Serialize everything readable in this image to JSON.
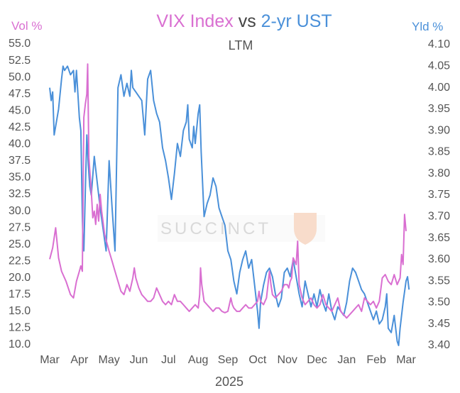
{
  "chart_data": {
    "type": "line",
    "title_parts": [
      "VIX Index",
      " vs ",
      "2-yr UST"
    ],
    "subtitle": "LTM",
    "left_axis_label": "Vol %",
    "right_axis_label": "Yld %",
    "year_label": "2025",
    "watermark": "SUCCINCT",
    "colors": {
      "vix": "#d96fd1",
      "ust": "#4a90d9",
      "vs": "#444444"
    },
    "x_labels": [
      "Mar",
      "Apr",
      "May",
      "Jun",
      "Jul",
      "Aug",
      "Sep",
      "Oct",
      "Nov",
      "Dec",
      "Jan",
      "Feb",
      "Mar"
    ],
    "left_ticks": [
      "55.0",
      "52.5",
      "50.0",
      "47.5",
      "45.0",
      "42.5",
      "40.0",
      "37.5",
      "35.0",
      "32.5",
      "30.0",
      "27.5",
      "25.0",
      "22.5",
      "20.0",
      "17.5",
      "15.0",
      "12.5",
      "10.0"
    ],
    "right_ticks": [
      "4.10",
      "4.05",
      "4.00",
      "3.95",
      "3.90",
      "3.85",
      "3.80",
      "3.75",
      "3.70",
      "3.65",
      "3.60",
      "3.55",
      "3.50",
      "3.45",
      "3.40"
    ],
    "y_left_range": [
      10,
      55
    ],
    "y_right_range": [
      3.4,
      4.1
    ],
    "x_range": [
      0,
      12
    ],
    "series": [
      {
        "name": "VIX Index",
        "axis": "left",
        "points": [
          [
            0.0,
            22.8
          ],
          [
            0.1,
            24.5
          ],
          [
            0.2,
            27.5
          ],
          [
            0.3,
            23.0
          ],
          [
            0.4,
            21.0
          ],
          [
            0.55,
            19.5
          ],
          [
            0.7,
            17.5
          ],
          [
            0.8,
            17.0
          ],
          [
            0.9,
            19.5
          ],
          [
            1.0,
            21.0
          ],
          [
            1.05,
            21.8
          ],
          [
            1.1,
            21.0
          ],
          [
            1.15,
            44.0
          ],
          [
            1.2,
            46.0
          ],
          [
            1.25,
            47.5
          ],
          [
            1.28,
            52.0
          ],
          [
            1.32,
            38.0
          ],
          [
            1.4,
            33.0
          ],
          [
            1.45,
            29.0
          ],
          [
            1.5,
            30.0
          ],
          [
            1.55,
            28.0
          ],
          [
            1.6,
            31.0
          ],
          [
            1.65,
            28.5
          ],
          [
            1.7,
            32.5
          ],
          [
            1.75,
            30.0
          ],
          [
            1.85,
            26.5
          ],
          [
            2.0,
            24.0
          ],
          [
            2.1,
            22.5
          ],
          [
            2.2,
            21.0
          ],
          [
            2.3,
            19.5
          ],
          [
            2.4,
            18.0
          ],
          [
            2.5,
            17.5
          ],
          [
            2.6,
            19.0
          ],
          [
            2.7,
            18.0
          ],
          [
            2.8,
            20.0
          ],
          [
            2.85,
            21.5
          ],
          [
            2.9,
            20.0
          ],
          [
            3.0,
            18.5
          ],
          [
            3.1,
            17.5
          ],
          [
            3.2,
            17.0
          ],
          [
            3.3,
            16.5
          ],
          [
            3.4,
            16.5
          ],
          [
            3.5,
            17.0
          ],
          [
            3.6,
            18.5
          ],
          [
            3.7,
            17.5
          ],
          [
            3.8,
            16.5
          ],
          [
            3.9,
            16.0
          ],
          [
            4.0,
            16.5
          ],
          [
            4.1,
            16.0
          ],
          [
            4.2,
            17.5
          ],
          [
            4.3,
            16.5
          ],
          [
            4.4,
            16.5
          ],
          [
            4.5,
            16.0
          ],
          [
            4.6,
            15.5
          ],
          [
            4.7,
            15.0
          ],
          [
            4.8,
            15.5
          ],
          [
            4.9,
            16.0
          ],
          [
            5.0,
            15.5
          ],
          [
            5.05,
            17.5
          ],
          [
            5.08,
            21.5
          ],
          [
            5.12,
            19.0
          ],
          [
            5.2,
            16.5
          ],
          [
            5.3,
            16.0
          ],
          [
            5.4,
            15.5
          ],
          [
            5.5,
            15.0
          ],
          [
            5.6,
            15.5
          ],
          [
            5.7,
            15.5
          ],
          [
            5.8,
            15.0
          ],
          [
            5.9,
            14.8
          ],
          [
            6.0,
            15.0
          ],
          [
            6.05,
            16.0
          ],
          [
            6.1,
            17.0
          ],
          [
            6.15,
            16.0
          ],
          [
            6.2,
            15.5
          ],
          [
            6.3,
            15.0
          ],
          [
            6.4,
            15.0
          ],
          [
            6.5,
            15.5
          ],
          [
            6.6,
            16.0
          ],
          [
            6.7,
            15.5
          ],
          [
            6.8,
            15.5
          ],
          [
            6.9,
            16.0
          ],
          [
            7.0,
            16.5
          ],
          [
            7.05,
            18.0
          ],
          [
            7.1,
            16.5
          ],
          [
            7.2,
            16.0
          ],
          [
            7.3,
            17.0
          ],
          [
            7.4,
            21.0
          ],
          [
            7.45,
            19.0
          ],
          [
            7.5,
            17.5
          ],
          [
            7.6,
            17.0
          ],
          [
            7.7,
            17.5
          ],
          [
            7.8,
            18.0
          ],
          [
            7.9,
            19.0
          ],
          [
            8.0,
            19.0
          ],
          [
            8.05,
            18.5
          ],
          [
            8.1,
            19.5
          ],
          [
            8.15,
            20.0
          ],
          [
            8.2,
            23.0
          ],
          [
            8.3,
            22.0
          ],
          [
            8.35,
            25.5
          ],
          [
            8.4,
            19.0
          ],
          [
            8.5,
            17.0
          ],
          [
            8.6,
            16.0
          ],
          [
            8.7,
            16.5
          ],
          [
            8.8,
            17.0
          ],
          [
            8.9,
            16.0
          ],
          [
            9.0,
            15.5
          ],
          [
            9.1,
            16.0
          ],
          [
            9.2,
            17.5
          ],
          [
            9.3,
            16.0
          ],
          [
            9.4,
            15.5
          ],
          [
            9.5,
            15.0
          ],
          [
            9.6,
            16.0
          ],
          [
            9.7,
            17.0
          ],
          [
            9.8,
            15.0
          ],
          [
            9.9,
            14.5
          ],
          [
            10.0,
            14.0
          ],
          [
            10.1,
            14.5
          ],
          [
            10.2,
            15.0
          ],
          [
            10.3,
            15.5
          ],
          [
            10.4,
            16.0
          ],
          [
            10.5,
            15.0
          ],
          [
            10.6,
            17.0
          ],
          [
            10.7,
            16.5
          ],
          [
            10.8,
            16.0
          ],
          [
            10.9,
            16.5
          ],
          [
            11.0,
            15.5
          ],
          [
            11.1,
            16.5
          ],
          [
            11.2,
            20.0
          ],
          [
            11.3,
            20.5
          ],
          [
            11.4,
            19.5
          ],
          [
            11.5,
            19.0
          ],
          [
            11.6,
            20.5
          ],
          [
            11.7,
            19.0
          ],
          [
            11.8,
            20.0
          ],
          [
            11.85,
            23.5
          ],
          [
            11.9,
            22.0
          ],
          [
            11.95,
            29.5
          ],
          [
            12.0,
            27.0
          ]
        ]
      },
      {
        "name": "2-yr UST",
        "axis": "right",
        "points": [
          [
            0.0,
            4.0
          ],
          [
            0.05,
            3.97
          ],
          [
            0.1,
            3.99
          ],
          [
            0.15,
            3.89
          ],
          [
            0.2,
            3.91
          ],
          [
            0.3,
            3.95
          ],
          [
            0.4,
            4.02
          ],
          [
            0.45,
            4.05
          ],
          [
            0.5,
            4.04
          ],
          [
            0.6,
            4.05
          ],
          [
            0.7,
            4.03
          ],
          [
            0.8,
            4.04
          ],
          [
            0.85,
            3.99
          ],
          [
            0.9,
            4.04
          ],
          [
            1.0,
            3.93
          ],
          [
            1.05,
            3.9
          ],
          [
            1.1,
            3.7
          ],
          [
            1.12,
            3.64
          ],
          [
            1.15,
            3.62
          ],
          [
            1.2,
            3.76
          ],
          [
            1.25,
            3.89
          ],
          [
            1.3,
            3.82
          ],
          [
            1.35,
            3.77
          ],
          [
            1.4,
            3.75
          ],
          [
            1.5,
            3.84
          ],
          [
            1.6,
            3.78
          ],
          [
            1.7,
            3.72
          ],
          [
            1.8,
            3.67
          ],
          [
            1.9,
            3.62
          ],
          [
            2.0,
            3.83
          ],
          [
            2.1,
            3.72
          ],
          [
            2.2,
            3.62
          ],
          [
            2.3,
            4.0
          ],
          [
            2.4,
            4.03
          ],
          [
            2.5,
            3.98
          ],
          [
            2.6,
            4.01
          ],
          [
            2.7,
            3.98
          ],
          [
            2.75,
            4.04
          ],
          [
            2.8,
            4.0
          ],
          [
            2.9,
            3.99
          ],
          [
            3.0,
            3.98
          ],
          [
            3.1,
            3.97
          ],
          [
            3.2,
            3.89
          ],
          [
            3.3,
            4.02
          ],
          [
            3.4,
            4.04
          ],
          [
            3.5,
            3.97
          ],
          [
            3.6,
            3.94
          ],
          [
            3.7,
            3.92
          ],
          [
            3.8,
            3.86
          ],
          [
            3.9,
            3.83
          ],
          [
            4.0,
            3.79
          ],
          [
            4.1,
            3.74
          ],
          [
            4.2,
            3.8
          ],
          [
            4.3,
            3.87
          ],
          [
            4.4,
            3.84
          ],
          [
            4.5,
            3.9
          ],
          [
            4.6,
            3.92
          ],
          [
            4.65,
            3.96
          ],
          [
            4.7,
            3.88
          ],
          [
            4.8,
            3.86
          ],
          [
            4.85,
            3.91
          ],
          [
            4.9,
            3.87
          ],
          [
            5.0,
            3.94
          ],
          [
            5.05,
            3.96
          ],
          [
            5.1,
            3.85
          ],
          [
            5.2,
            3.7
          ],
          [
            5.3,
            3.73
          ],
          [
            5.4,
            3.75
          ],
          [
            5.5,
            3.79
          ],
          [
            5.6,
            3.77
          ],
          [
            5.7,
            3.72
          ],
          [
            5.8,
            3.7
          ],
          [
            5.9,
            3.68
          ],
          [
            6.0,
            3.62
          ],
          [
            6.1,
            3.6
          ],
          [
            6.2,
            3.55
          ],
          [
            6.3,
            3.52
          ],
          [
            6.4,
            3.57
          ],
          [
            6.5,
            3.6
          ],
          [
            6.6,
            3.62
          ],
          [
            6.7,
            3.58
          ],
          [
            6.8,
            3.6
          ],
          [
            6.9,
            3.54
          ],
          [
            7.0,
            3.48
          ],
          [
            7.05,
            3.44
          ],
          [
            7.1,
            3.5
          ],
          [
            7.2,
            3.54
          ],
          [
            7.3,
            3.57
          ],
          [
            7.4,
            3.58
          ],
          [
            7.5,
            3.56
          ],
          [
            7.6,
            3.52
          ],
          [
            7.7,
            3.49
          ],
          [
            7.8,
            3.51
          ],
          [
            7.9,
            3.57
          ],
          [
            8.0,
            3.58
          ],
          [
            8.1,
            3.56
          ],
          [
            8.2,
            3.6
          ],
          [
            8.3,
            3.56
          ],
          [
            8.4,
            3.52
          ],
          [
            8.5,
            3.49
          ],
          [
            8.6,
            3.55
          ],
          [
            8.7,
            3.52
          ],
          [
            8.8,
            3.49
          ],
          [
            8.9,
            3.52
          ],
          [
            9.0,
            3.49
          ],
          [
            9.1,
            3.53
          ],
          [
            9.2,
            3.5
          ],
          [
            9.3,
            3.48
          ],
          [
            9.4,
            3.52
          ],
          [
            9.5,
            3.48
          ],
          [
            9.6,
            3.46
          ],
          [
            9.7,
            3.49
          ],
          [
            9.8,
            3.48
          ],
          [
            9.9,
            3.47
          ],
          [
            10.0,
            3.5
          ],
          [
            10.1,
            3.55
          ],
          [
            10.2,
            3.58
          ],
          [
            10.3,
            3.57
          ],
          [
            10.4,
            3.55
          ],
          [
            10.5,
            3.53
          ],
          [
            10.6,
            3.52
          ],
          [
            10.7,
            3.5
          ],
          [
            10.8,
            3.48
          ],
          [
            10.9,
            3.46
          ],
          [
            11.0,
            3.48
          ],
          [
            11.1,
            3.45
          ],
          [
            11.2,
            3.46
          ],
          [
            11.3,
            3.49
          ],
          [
            11.35,
            3.52
          ],
          [
            11.4,
            3.44
          ],
          [
            11.5,
            3.43
          ],
          [
            11.6,
            3.47
          ],
          [
            11.7,
            3.41
          ],
          [
            11.75,
            3.4
          ],
          [
            11.8,
            3.44
          ],
          [
            11.9,
            3.5
          ],
          [
            12.0,
            3.55
          ],
          [
            12.05,
            3.56
          ],
          [
            12.1,
            3.53
          ]
        ]
      }
    ]
  }
}
